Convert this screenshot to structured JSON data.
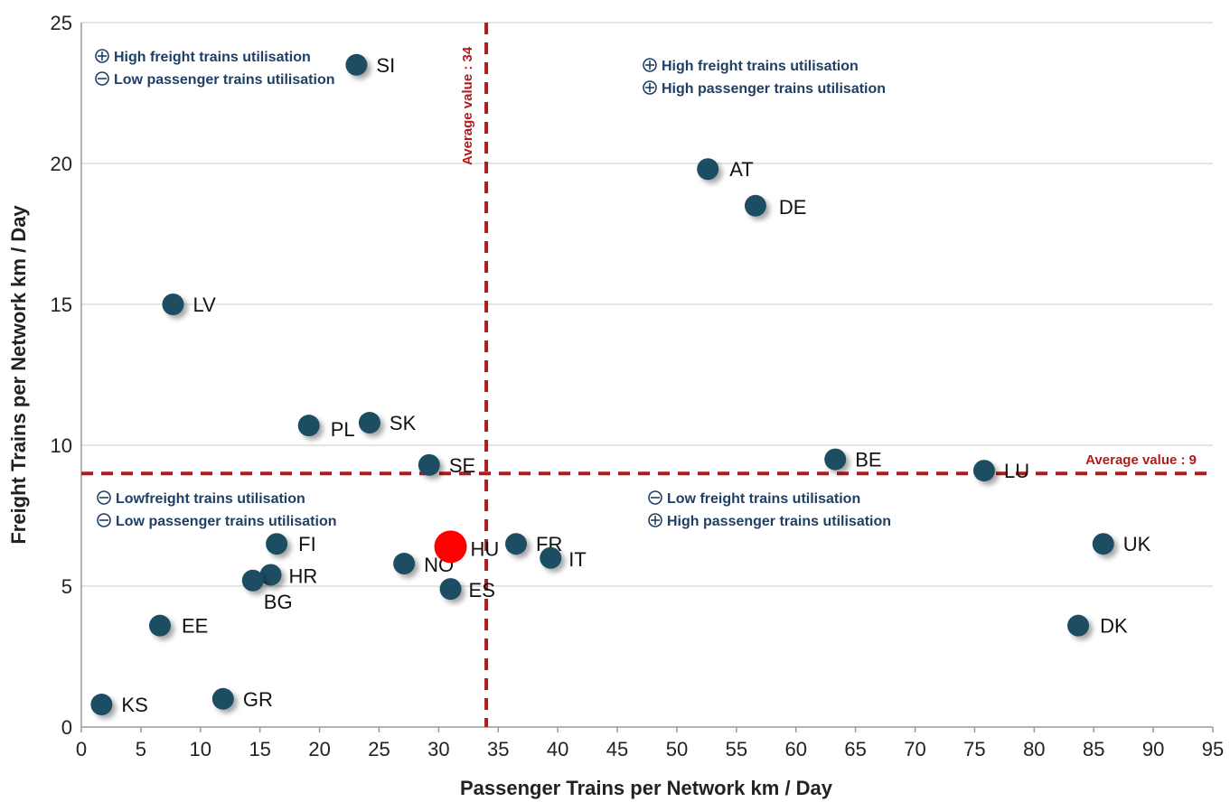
{
  "chart_data": {
    "type": "scatter",
    "xlabel": "Passenger Trains per Network km / Day",
    "ylabel": "Freight Trains per Network km / Day",
    "xlim": [
      0,
      95
    ],
    "ylim": [
      0,
      25
    ],
    "x_ticks": [
      0,
      5,
      10,
      15,
      20,
      25,
      30,
      35,
      40,
      45,
      50,
      55,
      60,
      65,
      70,
      75,
      80,
      85,
      90,
      95
    ],
    "y_ticks": [
      0,
      5,
      10,
      15,
      20,
      25
    ],
    "grid": "horizontal",
    "colors": {
      "point": "#1e4d63",
      "highlight": "#ff0000",
      "average_line": "#b01c1c",
      "quadrant_text": "#1f3f66"
    },
    "points": [
      {
        "label": "SI",
        "x": 23.1,
        "y": 23.5
      },
      {
        "label": "AT",
        "x": 52.6,
        "y": 19.8
      },
      {
        "label": "DE",
        "x": 56.6,
        "y": 18.5
      },
      {
        "label": "LV",
        "x": 7.7,
        "y": 15.0
      },
      {
        "label": "PL",
        "x": 19.1,
        "y": 10.7
      },
      {
        "label": "SK",
        "x": 24.2,
        "y": 10.8
      },
      {
        "label": "SE",
        "x": 29.2,
        "y": 9.3
      },
      {
        "label": "BE",
        "x": 63.3,
        "y": 9.5
      },
      {
        "label": "LU",
        "x": 75.8,
        "y": 9.1
      },
      {
        "label": "FI",
        "x": 16.4,
        "y": 6.5
      },
      {
        "label": "HR",
        "x": 15.9,
        "y": 5.4
      },
      {
        "label": "BG",
        "x": 14.4,
        "y": 5.2
      },
      {
        "label": "NO",
        "x": 27.1,
        "y": 5.8
      },
      {
        "label": "ES",
        "x": 31.0,
        "y": 4.9
      },
      {
        "label": "FR",
        "x": 36.5,
        "y": 6.5
      },
      {
        "label": "IT",
        "x": 39.4,
        "y": 6.0
      },
      {
        "label": "UK",
        "x": 85.8,
        "y": 6.5
      },
      {
        "label": "EE",
        "x": 6.6,
        "y": 3.6
      },
      {
        "label": "DK",
        "x": 83.7,
        "y": 3.6
      },
      {
        "label": "KS",
        "x": 1.7,
        "y": 0.8
      },
      {
        "label": "GR",
        "x": 11.9,
        "y": 1.0
      },
      {
        "label": "HU",
        "x": 31.0,
        "y": 6.4,
        "highlight": true
      }
    ],
    "average_lines": [
      {
        "axis": "x",
        "value": 34,
        "label": "Average value : 34"
      },
      {
        "axis": "y",
        "value": 9,
        "label": "Average value : 9"
      }
    ],
    "quadrants": [
      {
        "position": "top-left",
        "lines": [
          {
            "sign": "plus",
            "text": "High freight trains utilisation"
          },
          {
            "sign": "minus",
            "text": "Low passenger trains utilisation"
          }
        ]
      },
      {
        "position": "top-right",
        "lines": [
          {
            "sign": "plus",
            "text": "High freight trains utilisation"
          },
          {
            "sign": "plus",
            "text": "High passenger trains utilisation"
          }
        ]
      },
      {
        "position": "bottom-left",
        "lines": [
          {
            "sign": "minus",
            "text": "Lowfreight trains utilisation"
          },
          {
            "sign": "minus",
            "text": "Low passenger trains utilisation"
          }
        ]
      },
      {
        "position": "bottom-right",
        "lines": [
          {
            "sign": "minus",
            "text": "Low freight trains utilisation"
          },
          {
            "sign": "plus",
            "text": "High passenger trains utilisation"
          }
        ]
      }
    ]
  }
}
